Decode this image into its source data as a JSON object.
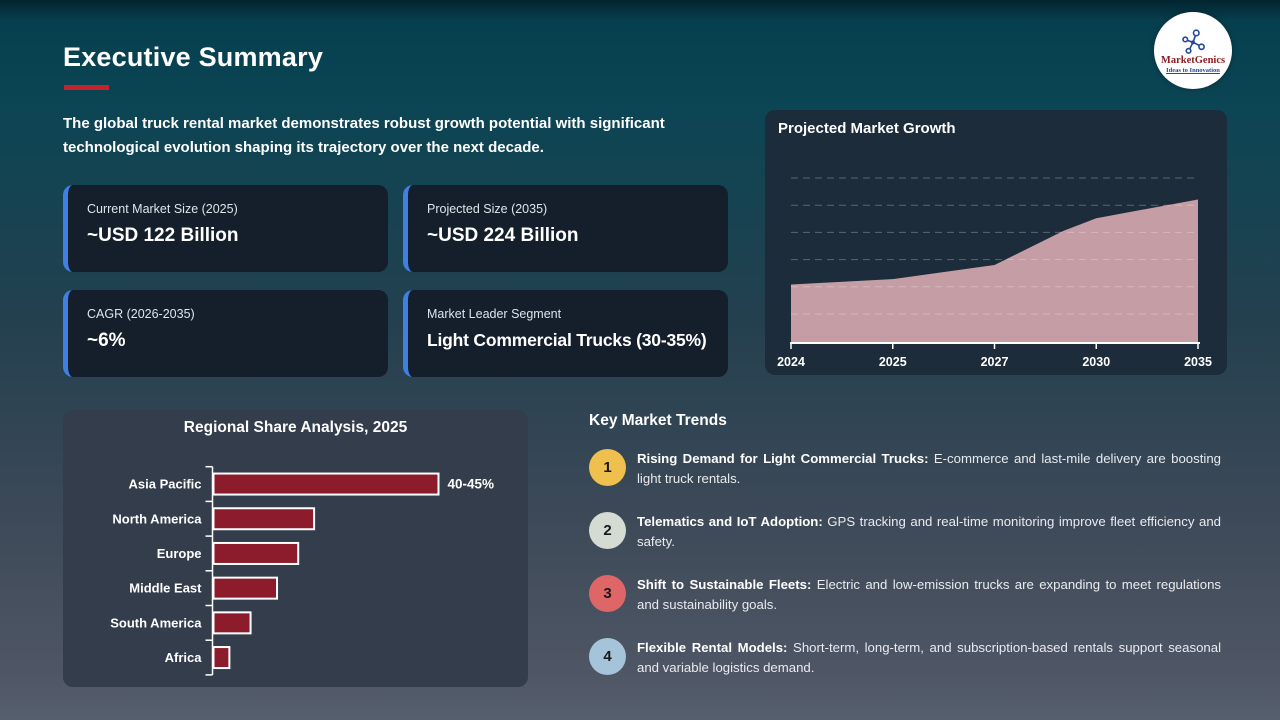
{
  "slide": {
    "title": "Executive Summary",
    "intro": "The global truck rental market demonstrates robust growth potential with significant technological evolution shaping its trajectory over the next decade."
  },
  "logo": {
    "brand": "MarketGenics",
    "tagline": "Ideas to Innovation",
    "brand_color": "#8c1f25",
    "tagline_color": "#24489a"
  },
  "colors": {
    "accent_red": "#c3242b",
    "accent_blue": "#3f80e2",
    "area_fill": "#c59da4",
    "bar_fill": "#8c1c2b"
  },
  "stats": [
    {
      "label": "Current Market Size (2025)",
      "value": "~USD 122 Billion"
    },
    {
      "label": "Projected Size (2035)",
      "value": "~USD 224 Billion"
    },
    {
      "label": "CAGR (2026-2035)",
      "value": "~6%"
    },
    {
      "label": "Market Leader Segment",
      "value": "Light Commercial Trucks (30-35%)"
    }
  ],
  "trends": {
    "heading": "Key Market Trends",
    "items": [
      {
        "num": "1",
        "color": "#efc04d",
        "title": "Rising Demand for Light Commercial Trucks:",
        "body": "E-commerce and last-mile delivery are boosting light truck rentals."
      },
      {
        "num": "2",
        "color": "#d3dbd2",
        "title": "Telematics and IoT Adoption:",
        "body": "GPS tracking and real-time monitoring improve fleet efficiency and safety."
      },
      {
        "num": "3",
        "color": "#df6666",
        "title": "Shift to Sustainable Fleets:",
        "body": "Electric and low-emission trucks are expanding to meet regulations and sustainability goals."
      },
      {
        "num": "4",
        "color": "#a5c3d9",
        "title": "Flexible Rental Models:",
        "body": "Short-term, long-term, and subscription-based rentals support seasonal and variable logistics demand."
      }
    ]
  },
  "chart_data": [
    {
      "id": "growth",
      "type": "area",
      "title": "Projected Market Growth",
      "x": [
        "2024",
        "2025",
        "2027",
        "2030",
        "2035"
      ],
      "values": [
        115,
        122,
        140,
        200,
        224
      ],
      "extra_points": [
        {
          "x_frac": 0.67,
          "value": 184
        }
      ],
      "xlabel": "",
      "ylabel": "",
      "y_axis_labeled": false,
      "ylim": [
        40,
        258
      ],
      "gridlines": 6,
      "grid_style": "dashed",
      "legend": "none",
      "fill": "#c59da4",
      "axis_color": "#ffffff"
    },
    {
      "id": "regional",
      "type": "bar",
      "orientation": "horizontal",
      "title": "Regional Share Analysis, 2025",
      "categories": [
        "Asia Pacific",
        "North America",
        "Europe",
        "Middle East",
        "South America",
        "Africa"
      ],
      "values": [
        42.5,
        19,
        16,
        12,
        7,
        3
      ],
      "value_labels": [
        "40-45%",
        "",
        "",
        "",
        "",
        ""
      ],
      "unit": "%",
      "xlim": [
        0,
        45
      ],
      "bar_color": "#8c1c2b",
      "bar_border": "#ffffff",
      "axis_color": "#ffffff",
      "legend": "none"
    }
  ]
}
